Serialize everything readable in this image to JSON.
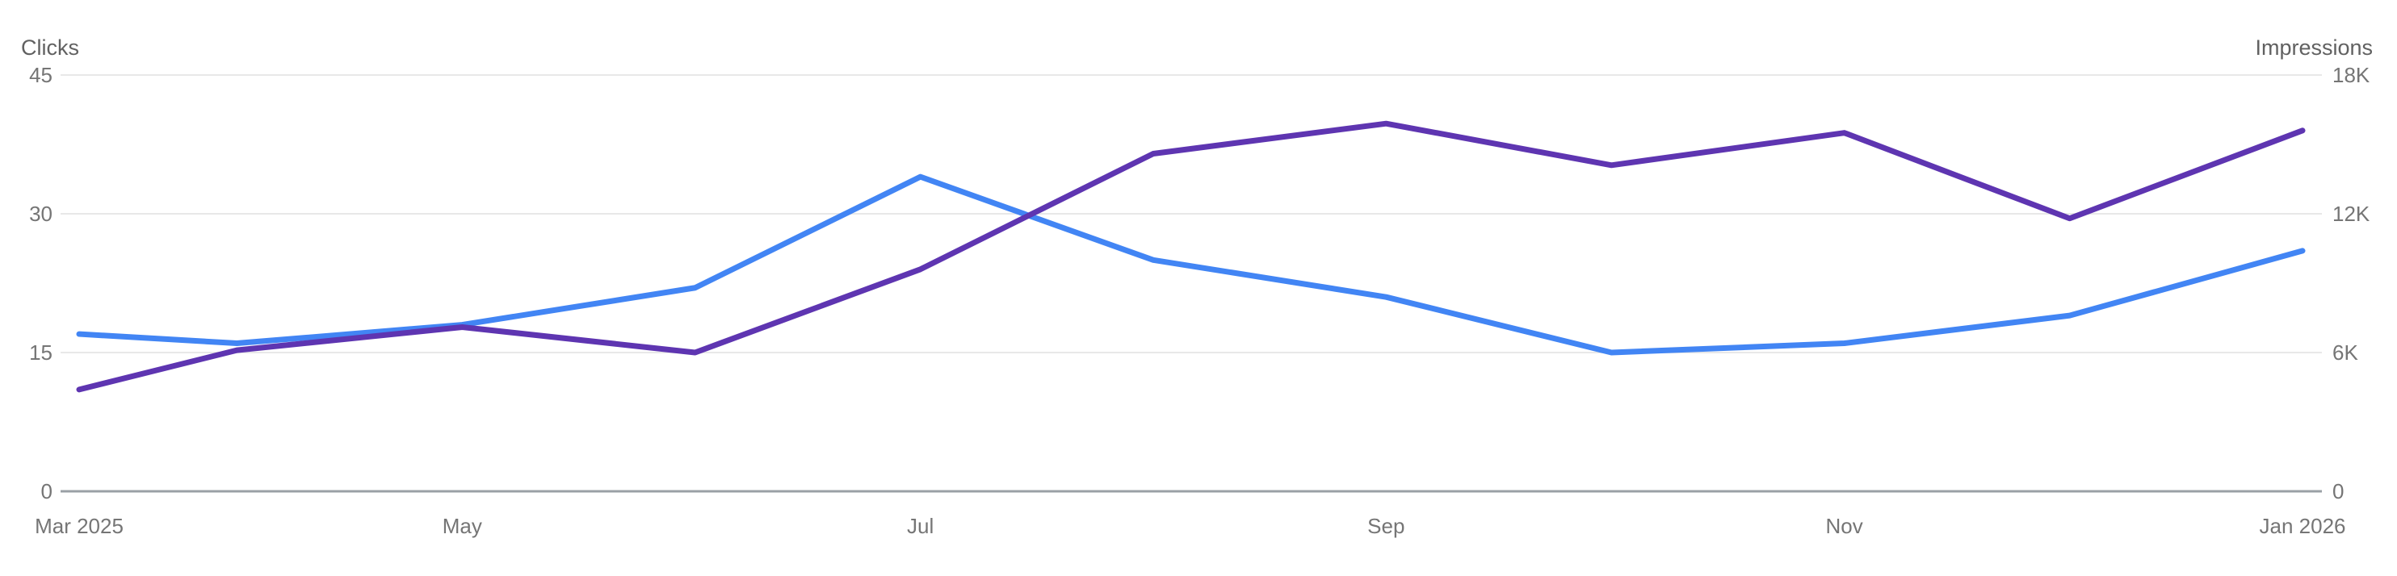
{
  "page": {
    "background": "#FFFFFF"
  },
  "colors": {
    "clicks_line": "#4285F4",
    "impressions_line": "#5E35B1",
    "gridline": "#E8E8E8",
    "axis_line": "#9AA0A6",
    "tick_label": "#757575",
    "axis_title": "#616161"
  },
  "chart_data": {
    "type": "line",
    "title": "",
    "legend": "none",
    "grid": true,
    "x": {
      "type": "date",
      "start_date": "2025-03-11",
      "end_date": "2026-01-01",
      "points": [
        "2025-03-11",
        "2025-04-01",
        "2025-05-01",
        "2025-06-01",
        "2025-07-01",
        "2025-08-01",
        "2025-09-01",
        "2025-10-01",
        "2025-11-01",
        "2025-12-01",
        "2026-01-01"
      ],
      "tick_labels": [
        {
          "date": "2025-03-11",
          "label": "Mar 2025"
        },
        {
          "date": "2025-05-01",
          "label": "May"
        },
        {
          "date": "2025-07-01",
          "label": "Jul"
        },
        {
          "date": "2025-09-01",
          "label": "Sep"
        },
        {
          "date": "2025-11-01",
          "label": "Nov"
        },
        {
          "date": "2026-01-01",
          "label": "Jan 2026"
        }
      ]
    },
    "axes": {
      "left": {
        "title": "Clicks",
        "min": 0,
        "max": 45,
        "ticks": [
          {
            "value": 0,
            "label": "0"
          },
          {
            "value": 15,
            "label": "15"
          },
          {
            "value": 30,
            "label": "30"
          },
          {
            "value": 45,
            "label": "45"
          }
        ]
      },
      "right": {
        "title": "Impressions",
        "min": 0,
        "max": 18000,
        "ticks": [
          {
            "value": 0,
            "label": "0"
          },
          {
            "value": 6000,
            "label": "6K"
          },
          {
            "value": 12000,
            "label": "12K"
          },
          {
            "value": 18000,
            "label": "18K"
          }
        ]
      }
    },
    "series": [
      {
        "name": "Clicks",
        "axis": "left",
        "color": "#4285F4",
        "values": [
          17,
          16,
          18,
          22,
          34,
          25,
          21,
          15,
          16,
          19,
          26
        ]
      },
      {
        "name": "Impressions",
        "axis": "right",
        "color": "#5E35B1",
        "values": [
          4400,
          6100,
          7100,
          6000,
          9600,
          14600,
          15900,
          14100,
          15500,
          11800,
          15600
        ]
      }
    ]
  }
}
